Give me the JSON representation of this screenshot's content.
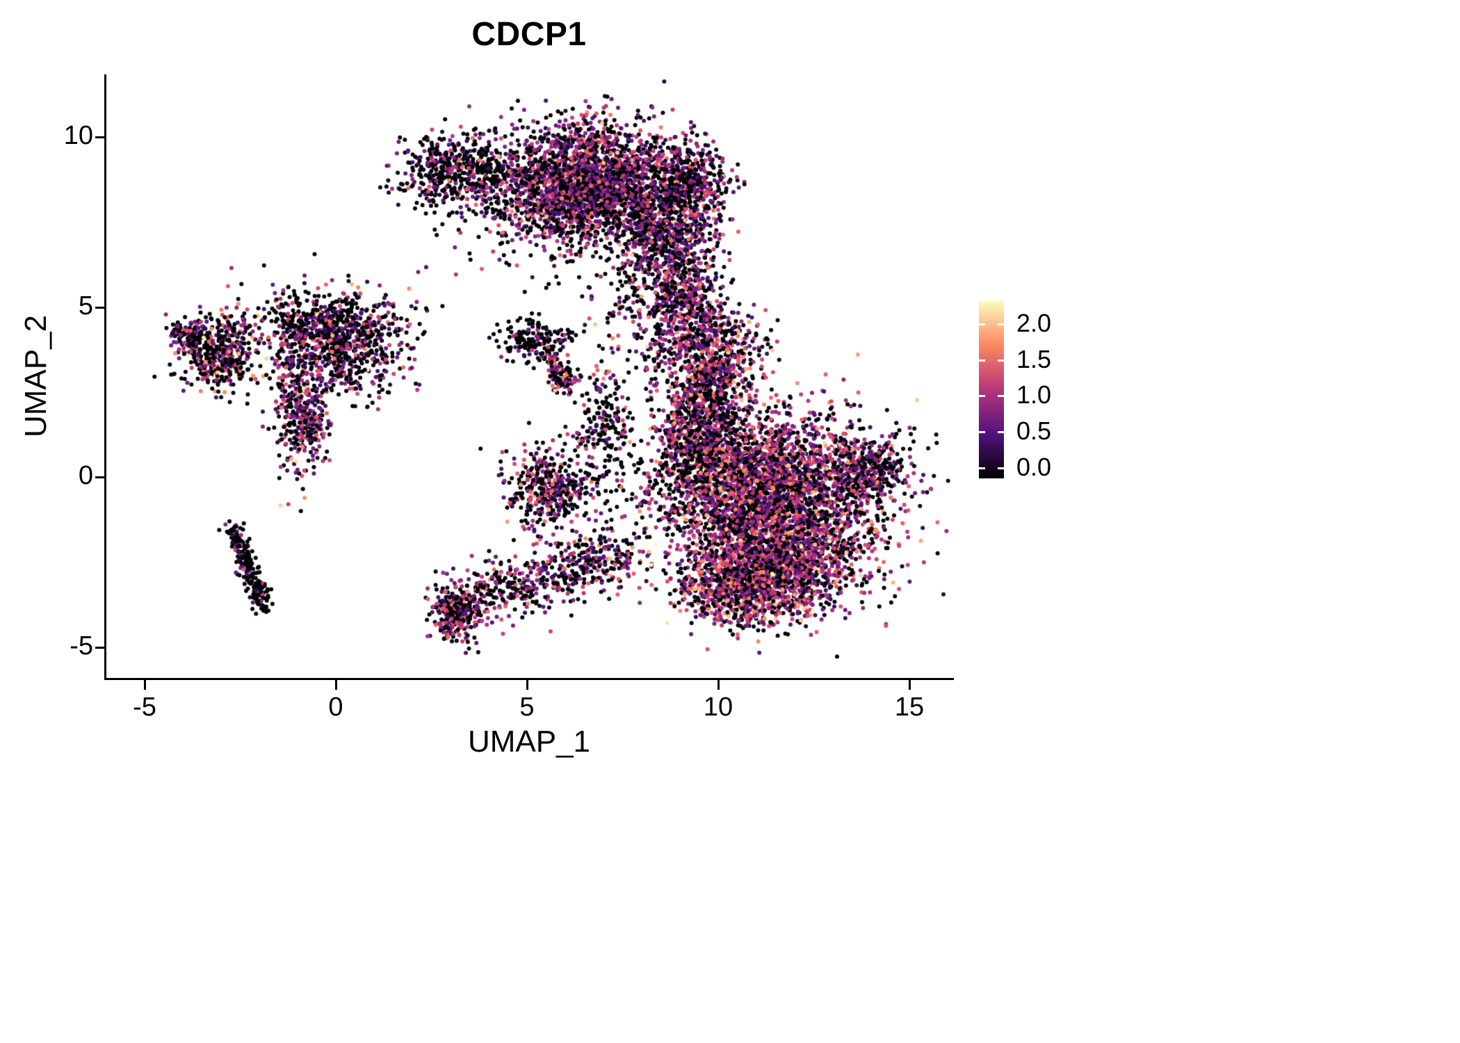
{
  "title": "CDCP1",
  "axes": {
    "xlabel": "UMAP_1",
    "ylabel": "UMAP_2",
    "x_ticks": [
      -5,
      0,
      5,
      10,
      15
    ],
    "y_ticks": [
      -5,
      0,
      5,
      10
    ]
  },
  "legend": {
    "ticks": [
      2.0,
      1.5,
      1.0,
      0.5,
      0.0
    ],
    "gradient_bottom_to_top": [
      "#000004",
      "#51127c",
      "#b73779",
      "#fb8861",
      "#fcfdbf"
    ]
  },
  "chart_data": {
    "type": "scatter",
    "title": "CDCP1",
    "xlabel": "UMAP_1",
    "ylabel": "UMAP_2",
    "xlim": [
      -6,
      16.1
    ],
    "ylim": [
      -5.9,
      11.9
    ],
    "x_ticks": [
      -5,
      0,
      5,
      10,
      15
    ],
    "y_ticks": [
      -5,
      0,
      5,
      10
    ],
    "grid": false,
    "legend_position": "right",
    "colormap": "magma",
    "color_domain": [
      0,
      2.5
    ],
    "colorbar_ticks": [
      0.0,
      0.5,
      1.0,
      1.5,
      2.0
    ],
    "point_radius_px": 3,
    "seed": 42,
    "clusters": [
      {
        "name": "top-left-arm",
        "shape": "gauss",
        "cx": 3.3,
        "cy": 9.0,
        "sx": 0.9,
        "sy": 0.55,
        "n": 550,
        "p0": 0.55,
        "mu": 0.8,
        "sigma": 0.45
      },
      {
        "name": "top-main",
        "shape": "gauss",
        "cx": 6.6,
        "cy": 8.7,
        "sx": 1.15,
        "sy": 0.85,
        "n": 2200,
        "p0": 0.38,
        "mu": 1.0,
        "sigma": 0.5
      },
      {
        "name": "top-right-lobe",
        "shape": "gauss",
        "cx": 8.6,
        "cy": 7.2,
        "sx": 0.7,
        "sy": 1.0,
        "n": 800,
        "p0": 0.45,
        "mu": 0.9,
        "sigma": 0.5
      },
      {
        "name": "top-right-tip",
        "shape": "gauss",
        "cx": 9.3,
        "cy": 8.7,
        "sx": 0.45,
        "sy": 0.6,
        "n": 350,
        "p0": 0.45,
        "mu": 0.9,
        "sigma": 0.5
      },
      {
        "name": "top-underside-sparse",
        "shape": "gauss",
        "cx": 5.3,
        "cy": 7.6,
        "sx": 1.2,
        "sy": 0.8,
        "n": 250,
        "p0": 0.55,
        "mu": 0.8,
        "sigma": 0.5
      },
      {
        "name": "neck",
        "shape": "gauss",
        "cx": 9.0,
        "cy": 5.3,
        "sx": 0.45,
        "sy": 0.8,
        "n": 250,
        "p0": 0.4,
        "mu": 1.0,
        "sigma": 0.5
      },
      {
        "name": "right-arm-upper",
        "shape": "gauss",
        "cx": 9.8,
        "cy": 3.3,
        "sx": 0.65,
        "sy": 1.0,
        "n": 900,
        "p0": 0.35,
        "mu": 1.1,
        "sigma": 0.5
      },
      {
        "name": "right-arm-mid",
        "shape": "gauss",
        "cx": 9.4,
        "cy": 1.2,
        "sx": 0.55,
        "sy": 0.9,
        "n": 500,
        "p0": 0.4,
        "mu": 1.0,
        "sigma": 0.5
      },
      {
        "name": "right-main",
        "shape": "gauss",
        "cx": 11.3,
        "cy": -0.4,
        "sx": 1.5,
        "sy": 1.15,
        "n": 3200,
        "p0": 0.35,
        "mu": 1.1,
        "sigma": 0.55
      },
      {
        "name": "right-lower",
        "shape": "gauss",
        "cx": 11.6,
        "cy": -2.6,
        "sx": 1.2,
        "sy": 0.75,
        "n": 1400,
        "p0": 0.3,
        "mu": 1.2,
        "sigma": 0.55
      },
      {
        "name": "right-east-tip",
        "shape": "gauss",
        "cx": 13.9,
        "cy": 0.2,
        "sx": 0.5,
        "sy": 0.55,
        "n": 300,
        "p0": 0.45,
        "mu": 1.0,
        "sigma": 0.5
      },
      {
        "name": "right-south-tail",
        "shape": "gauss",
        "cx": 10.6,
        "cy": -3.4,
        "sx": 0.8,
        "sy": 0.5,
        "n": 500,
        "p0": 0.35,
        "mu": 1.2,
        "sigma": 0.5
      },
      {
        "name": "left-cluster",
        "shape": "gauss",
        "cx": -3.1,
        "cy": 3.6,
        "sx": 0.5,
        "sy": 0.55,
        "n": 420,
        "p0": 0.5,
        "mu": 1.1,
        "sigma": 0.6
      },
      {
        "name": "left-cluster-tail",
        "shape": "gauss",
        "cx": -3.9,
        "cy": 4.2,
        "sx": 0.3,
        "sy": 0.25,
        "n": 90,
        "p0": 0.6,
        "mu": 0.8,
        "sigma": 0.4
      },
      {
        "name": "centerleft-main",
        "shape": "gauss",
        "cx": 0.0,
        "cy": 3.9,
        "sx": 0.95,
        "sy": 0.75,
        "n": 750,
        "p0": 0.5,
        "mu": 0.9,
        "sigma": 0.5
      },
      {
        "name": "centerleft-top",
        "shape": "gauss",
        "cx": -0.3,
        "cy": 4.6,
        "sx": 1.1,
        "sy": 0.35,
        "n": 280,
        "p0": 0.55,
        "mu": 0.9,
        "sigma": 0.5
      },
      {
        "name": "centerleft-strip",
        "shape": "gauss",
        "cx": -0.9,
        "cy": 1.9,
        "sx": 0.35,
        "sy": 0.9,
        "n": 380,
        "p0": 0.35,
        "mu": 1.0,
        "sigma": 0.5
      },
      {
        "name": "small-bird",
        "shape": "gauss",
        "cx": 5.3,
        "cy": 4.0,
        "sx": 0.5,
        "sy": 0.35,
        "n": 160,
        "p0": 0.75,
        "mu": 0.7,
        "sigma": 0.4
      },
      {
        "name": "bird-tail",
        "shape": "line",
        "x1": 5.6,
        "y1": 3.6,
        "x2": 6.0,
        "y2": 2.6,
        "jitter": 0.15,
        "n": 140,
        "p0": 0.35,
        "mu": 1.1,
        "sigma": 0.5
      },
      {
        "name": "diag-line",
        "shape": "line",
        "x1": -2.7,
        "y1": -1.5,
        "x2": -1.85,
        "y2": -3.85,
        "jitter": 0.12,
        "n": 230,
        "p0": 0.8,
        "mu": 0.7,
        "sigma": 0.4
      },
      {
        "name": "bottom-small",
        "shape": "gauss",
        "cx": 3.1,
        "cy": -4.0,
        "sx": 0.3,
        "sy": 0.4,
        "n": 260,
        "p0": 0.45,
        "mu": 1.0,
        "sigma": 0.5
      },
      {
        "name": "bottom-trail",
        "shape": "line",
        "x1": 3.4,
        "y1": -3.6,
        "x2": 7.6,
        "y2": -2.2,
        "jitter": 0.45,
        "n": 550,
        "p0": 0.45,
        "mu": 1.0,
        "sigma": 0.5
      },
      {
        "name": "mid-small",
        "shape": "gauss",
        "cx": 5.6,
        "cy": -0.3,
        "sx": 0.55,
        "sy": 0.6,
        "n": 380,
        "p0": 0.45,
        "mu": 1.0,
        "sigma": 0.5
      },
      {
        "name": "mid-sparse-vert",
        "shape": "gauss",
        "cx": 7.0,
        "cy": 1.4,
        "sx": 0.4,
        "sy": 1.1,
        "n": 220,
        "p0": 0.6,
        "mu": 0.9,
        "sigma": 0.5
      },
      {
        "name": "gap-sparse",
        "shape": "gauss",
        "cx": 8.3,
        "cy": 4.6,
        "sx": 0.8,
        "sy": 0.8,
        "n": 180,
        "p0": 0.5,
        "mu": 1.0,
        "sigma": 0.5
      }
    ]
  }
}
